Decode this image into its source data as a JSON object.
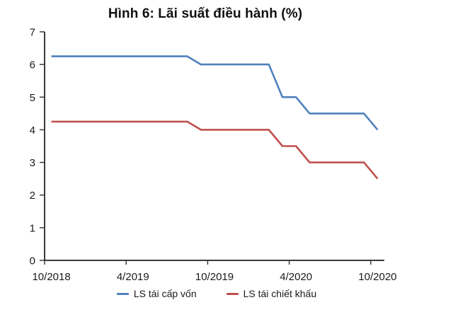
{
  "chart_data": {
    "type": "line",
    "title": "Hình 6: Lãi suất điều hành (%)",
    "x": [
      "10/2018",
      "11/2018",
      "12/2018",
      "1/2019",
      "2/2019",
      "3/2019",
      "4/2019",
      "5/2019",
      "6/2019",
      "7/2019",
      "8/2019",
      "9/2019",
      "10/2019",
      "11/2019",
      "12/2019",
      "1/2020",
      "2/2020",
      "3/2020",
      "4/2020",
      "5/2020",
      "6/2020",
      "7/2020",
      "8/2020",
      "9/2020",
      "10/2020"
    ],
    "x_tick_labels": [
      "10/2018",
      "4/2019",
      "10/2019",
      "4/2020",
      "10/2020"
    ],
    "y_ticks": [
      "0",
      "1",
      "2",
      "3",
      "4",
      "5",
      "6",
      "7"
    ],
    "ylim": [
      0,
      7
    ],
    "grid": false,
    "legend_position": "bottom",
    "xlabel": "",
    "ylabel": "",
    "series": [
      {
        "name": "LS tái cấp vốn",
        "color": "#4F81BD",
        "values": [
          6.25,
          6.25,
          6.25,
          6.25,
          6.25,
          6.25,
          6.25,
          6.25,
          6.25,
          6.25,
          6.25,
          6.0,
          6.0,
          6.0,
          6.0,
          6.0,
          6.0,
          5.0,
          5.0,
          4.5,
          4.5,
          4.5,
          4.5,
          4.5,
          4.0
        ]
      },
      {
        "name": "LS tái chiết khấu",
        "color": "#C0504D",
        "values": [
          4.25,
          4.25,
          4.25,
          4.25,
          4.25,
          4.25,
          4.25,
          4.25,
          4.25,
          4.25,
          4.25,
          4.0,
          4.0,
          4.0,
          4.0,
          4.0,
          4.0,
          3.5,
          3.5,
          3.0,
          3.0,
          3.0,
          3.0,
          3.0,
          2.5
        ]
      }
    ],
    "axis_color": "#3a3a3a",
    "text_color": "#1a1a1a"
  }
}
